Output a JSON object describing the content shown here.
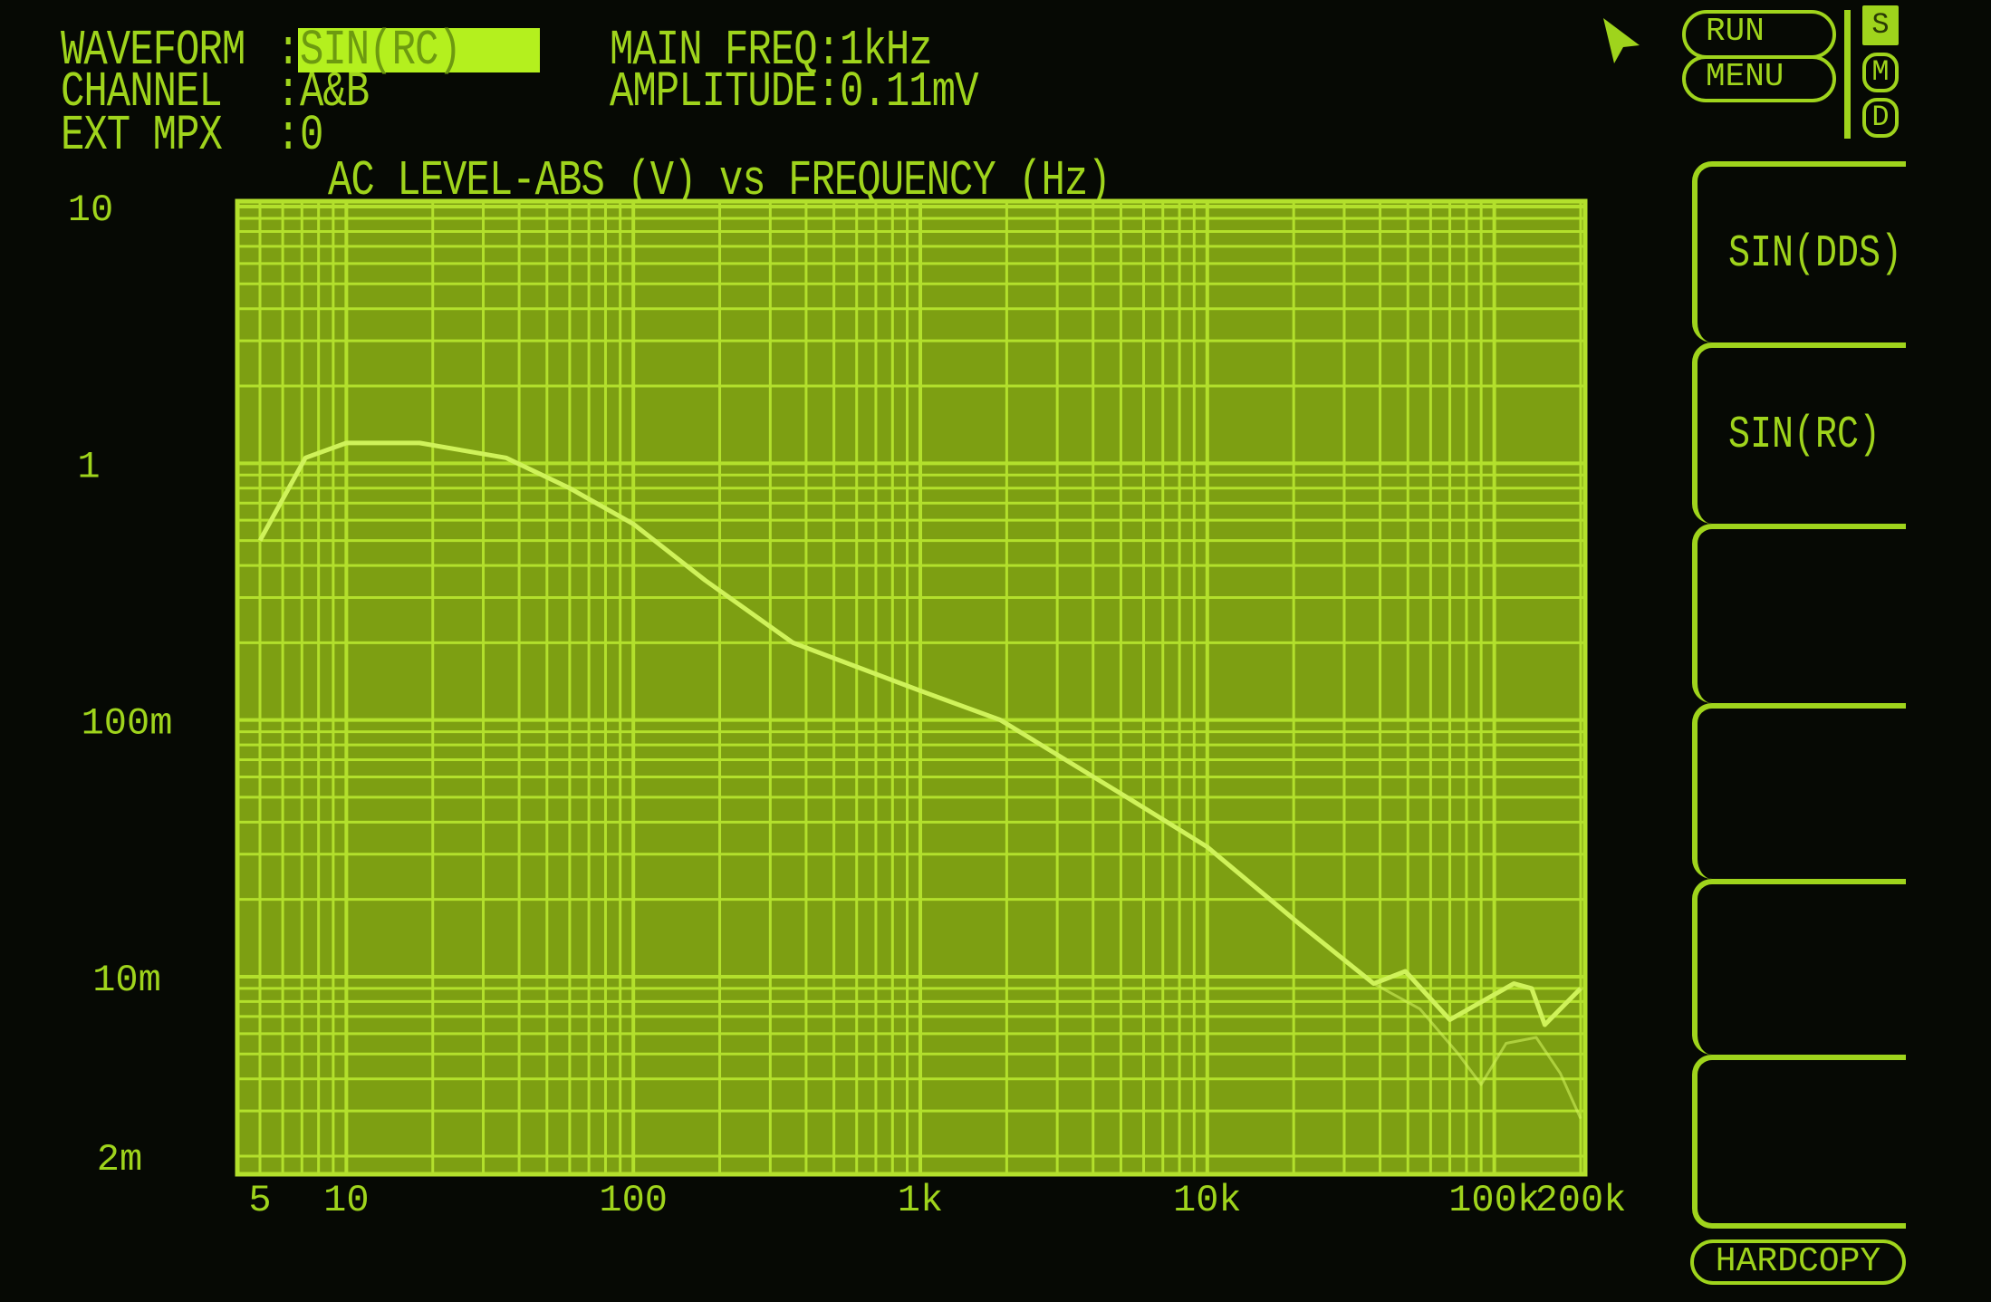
{
  "header": {
    "waveform_label": "WAVEFORM",
    "waveform_value": "SIN(RC)",
    "channel_label": "CHANNEL",
    "channel_value": "A&B",
    "ext_mpx_label": "EXT MPX",
    "ext_mpx_value": "0",
    "colon": ":",
    "main_freq": "MAIN FREQ:1kHz",
    "amplitude": "AMPLITUDE:0.11mV"
  },
  "controls": {
    "run": "RUN",
    "menu": "MENU",
    "modes": [
      {
        "label": "S",
        "active": true
      },
      {
        "label": "M",
        "active": false
      },
      {
        "label": "D",
        "active": false
      }
    ],
    "softkeys": [
      "SIN(DDS)",
      "SIN(RC)",
      "",
      "",
      "",
      ""
    ],
    "hardcopy": "HARDCOPY"
  },
  "colors": {
    "background": "#060904",
    "text": "#9fd41c",
    "plot_fill": "#7d9f12",
    "grid": "#b3e02c",
    "trace": "#cff25a"
  },
  "chart_data": {
    "type": "line",
    "title": "AC LEVEL-ABS (V) vs FREQUENCY (Hz)",
    "x_scale": "log",
    "y_scale": "log",
    "xlim": [
      5,
      200000
    ],
    "ylim": [
      0.002,
      10
    ],
    "grid": true,
    "x_ticks": [
      {
        "value": 5,
        "label": "5"
      },
      {
        "value": 10,
        "label": "10"
      },
      {
        "value": 100,
        "label": "100"
      },
      {
        "value": 1000,
        "label": "1k"
      },
      {
        "value": 10000,
        "label": "10k"
      },
      {
        "value": 100000,
        "label": "100k"
      },
      {
        "value": 200000,
        "label": "200k"
      }
    ],
    "y_ticks": [
      {
        "value": 10,
        "label": "10"
      },
      {
        "value": 1,
        "label": "1"
      },
      {
        "value": 0.1,
        "label": "100m"
      },
      {
        "value": 0.01,
        "label": "10m"
      },
      {
        "value": 0.002,
        "label": "2m"
      }
    ],
    "series": [
      {
        "x": [
          5,
          7.2,
          10,
          18,
          36,
          60,
          100,
          178,
          360,
          1000,
          1900,
          5400,
          10000,
          21000,
          38000,
          49000,
          70000,
          117000,
          135000,
          150000,
          200000
        ],
        "y": [
          0.5,
          1.05,
          1.2,
          1.2,
          1.05,
          0.8,
          0.58,
          0.35,
          0.2,
          0.13,
          0.1,
          0.049,
          0.032,
          0.016,
          0.0094,
          0.0105,
          0.0068,
          0.0094,
          0.009,
          0.0065,
          0.009
        ]
      },
      {
        "x": [
          38000,
          55000,
          75000,
          90000,
          110000,
          140000,
          170000,
          200000
        ],
        "y": [
          0.0094,
          0.0075,
          0.005,
          0.0038,
          0.0055,
          0.0058,
          0.0042,
          0.0028
        ]
      }
    ]
  }
}
